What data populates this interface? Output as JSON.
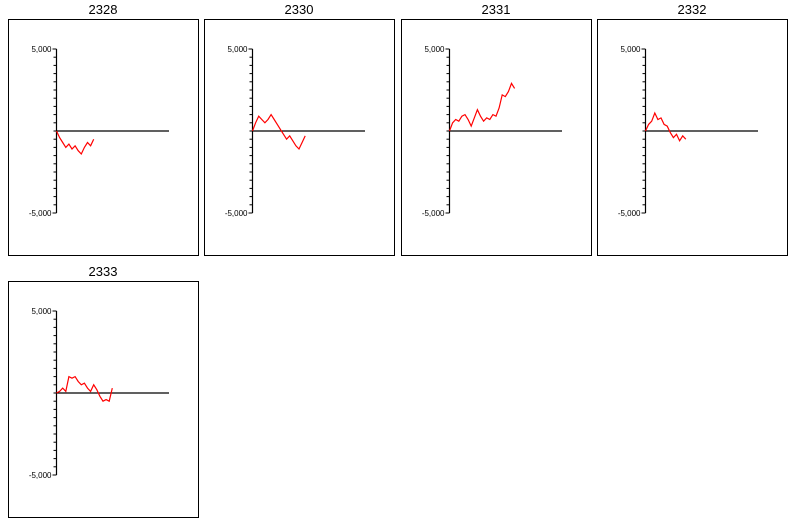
{
  "chart_data": [
    {
      "type": "line",
      "title": "2328",
      "ylim": [
        -5000,
        5000
      ],
      "y_tick_labels": [
        "5,000",
        "-5,000"
      ],
      "y_tick_step": 500,
      "color": "#ff0000",
      "series": [
        {
          "values": [
            0,
            -400,
            -700,
            -1000,
            -800,
            -1100,
            -900,
            -1200,
            -1400,
            -1000,
            -700,
            -900,
            -500
          ]
        }
      ]
    },
    {
      "type": "line",
      "title": "2330",
      "ylim": [
        -5000,
        5000
      ],
      "y_tick_labels": [
        "5,000",
        "-5,000"
      ],
      "y_tick_step": 500,
      "color": "#ff0000",
      "series": [
        {
          "values": [
            0,
            500,
            900,
            700,
            500,
            700,
            1000,
            700,
            400,
            100,
            -200,
            -500,
            -300,
            -600,
            -900,
            -1100,
            -700,
            -300
          ]
        }
      ]
    },
    {
      "type": "line",
      "title": "2331",
      "ylim": [
        -5000,
        5000
      ],
      "y_tick_labels": [
        "5,000",
        "-5,000"
      ],
      "y_tick_step": 500,
      "color": "#ff0000",
      "series": [
        {
          "values": [
            0,
            500,
            700,
            600,
            900,
            1000,
            700,
            300,
            800,
            1300,
            900,
            600,
            800,
            700,
            1000,
            900,
            1400,
            2200,
            2100,
            2400,
            2900,
            2600
          ]
        }
      ]
    },
    {
      "type": "line",
      "title": "2332",
      "ylim": [
        -5000,
        5000
      ],
      "y_tick_labels": [
        "5,000",
        "-5,000"
      ],
      "y_tick_step": 500,
      "color": "#ff0000",
      "series": [
        {
          "values": [
            0,
            400,
            600,
            1100,
            700,
            800,
            400,
            300,
            -100,
            -400,
            -200,
            -600,
            -300,
            -500
          ]
        }
      ]
    },
    {
      "type": "line",
      "title": "2333",
      "ylim": [
        -5000,
        5000
      ],
      "y_tick_labels": [
        "5,000",
        "-5,000"
      ],
      "y_tick_step": 500,
      "color": "#ff0000",
      "series": [
        {
          "values": [
            0,
            100,
            300,
            100,
            1000,
            900,
            1000,
            700,
            500,
            600,
            300,
            100,
            500,
            200,
            -200,
            -500,
            -400,
            -500,
            300
          ]
        }
      ]
    }
  ]
}
